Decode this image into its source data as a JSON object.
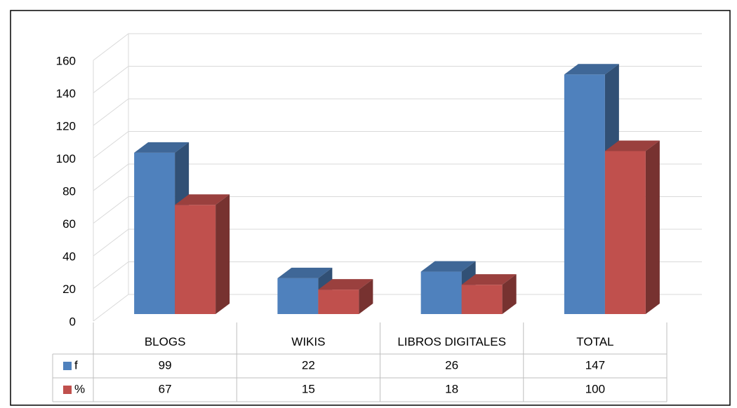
{
  "chart_data": {
    "type": "bar3d",
    "categories": [
      "BLOGS",
      "WIKIS",
      "LIBROS DIGITALES",
      "TOTAL"
    ],
    "series": [
      {
        "name": "f",
        "color": "#4f81bd",
        "values": [
          99,
          22,
          26,
          147
        ]
      },
      {
        "name": "%",
        "color": "#c0504d",
        "values": [
          67,
          15,
          18,
          100
        ]
      }
    ],
    "ylim": [
      0,
      160
    ],
    "yticks": [
      0,
      20,
      40,
      60,
      80,
      100,
      120,
      140,
      160
    ],
    "grid": true,
    "data_table": true
  }
}
